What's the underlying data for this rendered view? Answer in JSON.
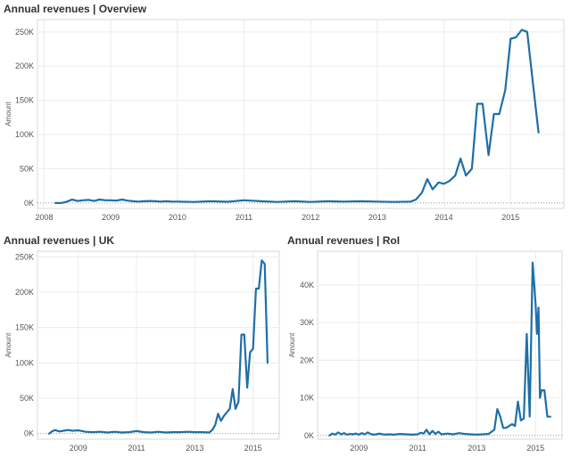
{
  "chart_data": [
    {
      "id": "overview",
      "type": "line",
      "title": "Annual revenues | Overview",
      "ylabel": "Amount",
      "xlabel": "",
      "xlim": [
        2007.9,
        2015.8
      ],
      "ylim": [
        -8000,
        268000
      ],
      "yticks": [
        0,
        50000,
        100000,
        150000,
        200000,
        250000
      ],
      "ytick_labels": [
        "0K",
        "50K",
        "100K",
        "150K",
        "200K",
        "250K"
      ],
      "xticks": [
        2008,
        2009,
        2010,
        2011,
        2012,
        2013,
        2014,
        2015
      ],
      "xtick_labels": [
        "2008",
        "2009",
        "2010",
        "2011",
        "2012",
        "2013",
        "2014",
        "2015"
      ],
      "grid": true,
      "line_color": "#1f6fa8",
      "series": [
        {
          "x": [
            2008.17,
            2008.25,
            2008.33,
            2008.42,
            2008.5,
            2008.58,
            2008.67,
            2008.75,
            2008.83,
            2008.92,
            2009.0,
            2009.08,
            2009.17,
            2009.25,
            2009.33,
            2009.42,
            2009.5,
            2009.58,
            2009.67,
            2009.75,
            2009.83,
            2009.92,
            2010.0,
            2010.25,
            2010.5,
            2010.75,
            2011.0,
            2011.25,
            2011.5,
            2011.75,
            2012.0,
            2012.25,
            2012.5,
            2012.75,
            2013.0,
            2013.25,
            2013.5,
            2013.58,
            2013.67,
            2013.75,
            2013.83,
            2013.92,
            2014.0,
            2014.08,
            2014.17,
            2014.25,
            2014.33,
            2014.42,
            2014.5,
            2014.58,
            2014.67,
            2014.75,
            2014.83,
            2014.92,
            2015.0,
            2015.08,
            2015.17,
            2015.25,
            2015.33,
            2015.42
          ],
          "y": [
            0,
            0,
            1500,
            5000,
            3000,
            4000,
            4500,
            3000,
            5000,
            4000,
            4000,
            3500,
            5000,
            3500,
            2500,
            2000,
            2500,
            3000,
            2500,
            2000,
            2500,
            2000,
            2000,
            1500,
            2500,
            1800,
            4000,
            2500,
            1500,
            2500,
            1500,
            2500,
            2000,
            2500,
            2000,
            1500,
            2000,
            5000,
            15000,
            35000,
            20000,
            30000,
            28000,
            32000,
            40000,
            65000,
            40000,
            50000,
            145000,
            145000,
            70000,
            130000,
            130000,
            165000,
            240000,
            242000,
            253000,
            250000,
            180000,
            103000
          ]
        }
      ]
    },
    {
      "id": "uk",
      "type": "line",
      "title": "Annual revenues | UK",
      "ylabel": "Amount",
      "xlabel": "",
      "xlim": [
        2007.6,
        2015.9
      ],
      "ylim": [
        -8000,
        258000
      ],
      "yticks": [
        0,
        50000,
        100000,
        150000,
        200000,
        250000
      ],
      "ytick_labels": [
        "0K",
        "50K",
        "100K",
        "150K",
        "200K",
        "250K"
      ],
      "xticks": [
        2009,
        2011,
        2013,
        2015
      ],
      "xtick_labels": [
        "2009",
        "2011",
        "2013",
        "2015"
      ],
      "grid": true,
      "line_color": "#1f6fa8",
      "series": [
        {
          "x": [
            2008.0,
            2008.1,
            2008.2,
            2008.35,
            2008.5,
            2008.65,
            2008.8,
            2009.0,
            2009.25,
            2009.5,
            2009.75,
            2010.0,
            2010.25,
            2010.5,
            2010.75,
            2011.0,
            2011.25,
            2011.5,
            2011.75,
            2012.0,
            2012.25,
            2012.5,
            2012.75,
            2013.0,
            2013.25,
            2013.5,
            2013.6,
            2013.7,
            2013.8,
            2013.9,
            2014.0,
            2014.1,
            2014.2,
            2014.3,
            2014.4,
            2014.5,
            2014.6,
            2014.7,
            2014.8,
            2014.9,
            2015.0,
            2015.1,
            2015.2,
            2015.3,
            2015.4,
            2015.5
          ],
          "y": [
            0,
            3000,
            5000,
            3000,
            4000,
            5000,
            4000,
            4500,
            2500,
            2000,
            2500,
            1500,
            2500,
            1500,
            2000,
            3500,
            2000,
            1500,
            2500,
            1500,
            2000,
            2000,
            2500,
            2000,
            2000,
            1500,
            5000,
            12000,
            28000,
            18000,
            25000,
            30000,
            35000,
            63000,
            35000,
            45000,
            140000,
            140000,
            65000,
            115000,
            120000,
            205000,
            205000,
            245000,
            240000,
            100000
          ]
        }
      ]
    },
    {
      "id": "roi",
      "type": "line",
      "title": "Annual revenues | RoI",
      "ylabel": "Amount",
      "xlabel": "",
      "xlim": [
        2007.6,
        2015.9
      ],
      "ylim": [
        -1000,
        49000
      ],
      "yticks": [
        0,
        10000,
        20000,
        30000,
        40000
      ],
      "ytick_labels": [
        "0K",
        "10K",
        "20K",
        "30K",
        "40K"
      ],
      "xticks": [
        2009,
        2011,
        2013,
        2015
      ],
      "xtick_labels": [
        "2009",
        "2011",
        "2013",
        "2015"
      ],
      "grid": true,
      "line_color": "#1f6fa8",
      "series": [
        {
          "x": [
            2008.0,
            2008.1,
            2008.2,
            2008.3,
            2008.4,
            2008.5,
            2008.6,
            2008.7,
            2008.8,
            2008.9,
            2009.0,
            2009.1,
            2009.2,
            2009.3,
            2009.4,
            2009.5,
            2009.6,
            2009.7,
            2009.8,
            2009.9,
            2010.0,
            2010.2,
            2010.4,
            2010.6,
            2010.8,
            2011.0,
            2011.1,
            2011.2,
            2011.3,
            2011.4,
            2011.5,
            2011.6,
            2011.7,
            2011.8,
            2012.0,
            2012.2,
            2012.4,
            2012.6,
            2012.8,
            2013.0,
            2013.2,
            2013.4,
            2013.6,
            2013.7,
            2013.8,
            2013.9,
            2014.0,
            2014.1,
            2014.2,
            2014.3,
            2014.4,
            2014.5,
            2014.6,
            2014.7,
            2014.8,
            2014.9,
            2015.0,
            2015.05,
            2015.1,
            2015.15,
            2015.2,
            2015.3,
            2015.4,
            2015.5
          ],
          "y": [
            0,
            500,
            200,
            800,
            300,
            600,
            200,
            400,
            300,
            500,
            200,
            600,
            300,
            800,
            400,
            200,
            300,
            500,
            300,
            200,
            300,
            200,
            400,
            300,
            200,
            300,
            700,
            500,
            1500,
            300,
            1200,
            400,
            1000,
            300,
            500,
            300,
            600,
            400,
            300,
            200,
            300,
            400,
            1500,
            7000,
            5000,
            2000,
            2000,
            2500,
            3000,
            2500,
            9000,
            4000,
            4500,
            27000,
            5000,
            46000,
            35000,
            27000,
            34000,
            10000,
            12000,
            12000,
            5000,
            5000
          ]
        }
      ]
    }
  ]
}
